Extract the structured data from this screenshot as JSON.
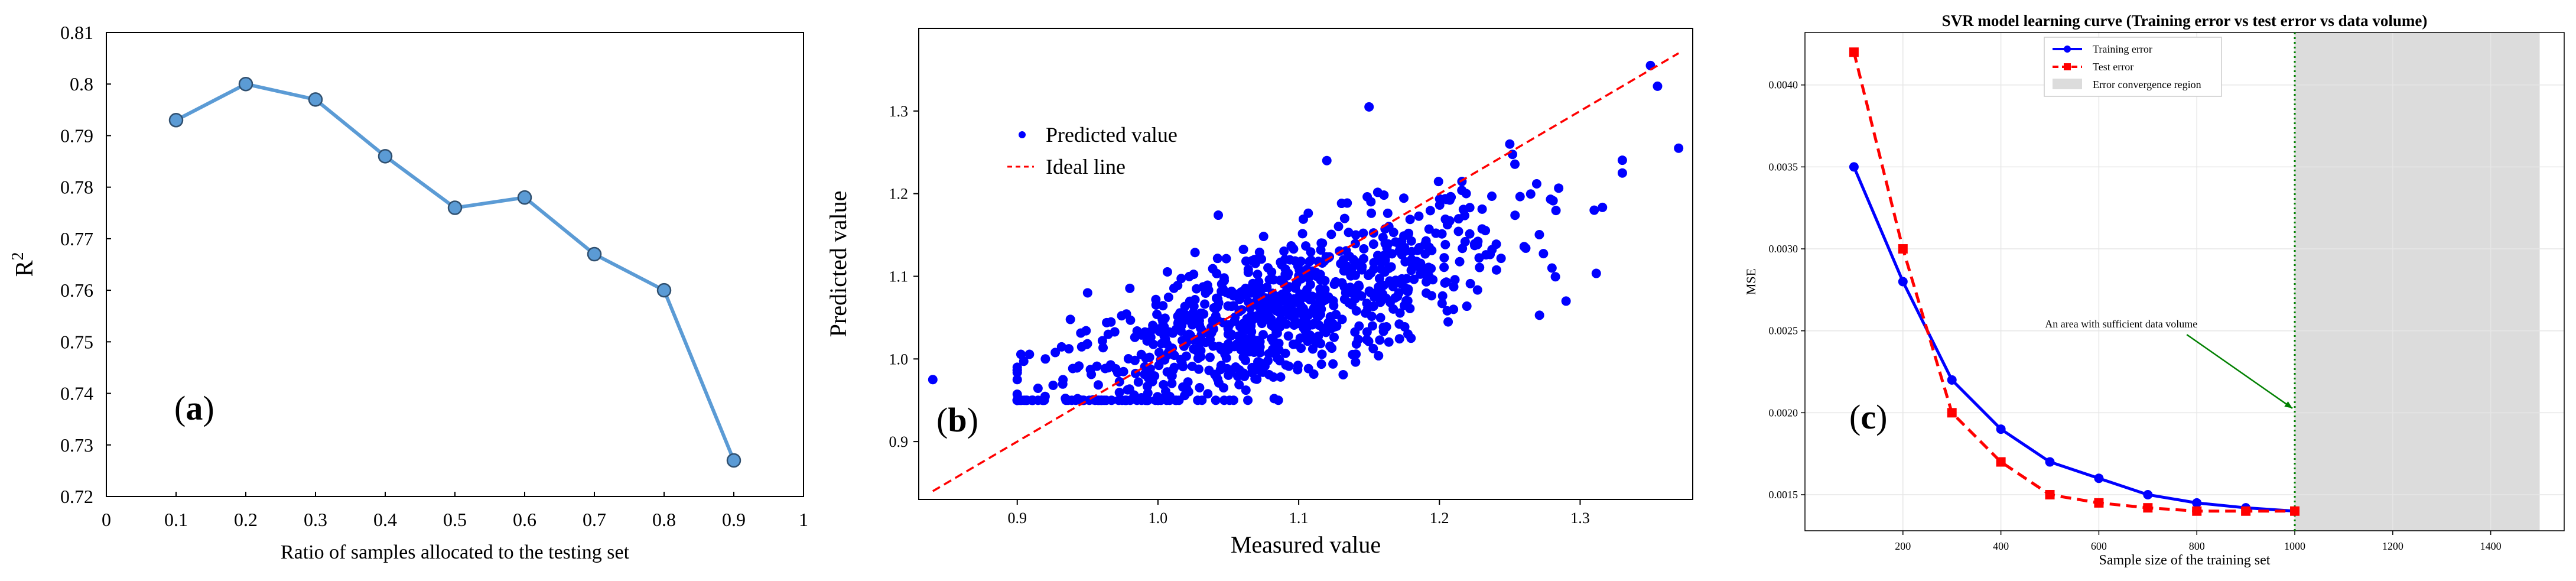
{
  "chart_data": [
    {
      "type": "line",
      "panel_label": "(a)",
      "panel_letter": "a",
      "xlabel": "Ratio of samples allocated to the testing set",
      "ylabel": "R",
      "ylabel_sup": "2",
      "xlim": [
        0,
        1
      ],
      "ylim": [
        0.72,
        0.81
      ],
      "xticks": [
        0,
        0.1,
        0.2,
        0.3,
        0.4,
        0.5,
        0.6,
        0.7,
        0.8,
        0.9,
        1
      ],
      "yticks": [
        0.72,
        0.73,
        0.74,
        0.75,
        0.76,
        0.77,
        0.78,
        0.79,
        0.8,
        0.81
      ],
      "xtick_labels": [
        "0",
        "0.1",
        "0.2",
        "0.3",
        "0.4",
        "0.5",
        "0.6",
        "0.7",
        "0.8",
        "0.9",
        "1"
      ],
      "ytick_labels": [
        "0.72",
        "0.73",
        "0.74",
        "0.75",
        "0.76",
        "0.77",
        "0.78",
        "0.79",
        "0.8",
        "0.81"
      ],
      "x": [
        0.1,
        0.2,
        0.3,
        0.4,
        0.5,
        0.6,
        0.7,
        0.8,
        0.9
      ],
      "y": [
        0.793,
        0.8,
        0.797,
        0.786,
        0.776,
        0.778,
        0.767,
        0.76,
        0.727
      ],
      "color": "#5b9bd5"
    },
    {
      "type": "scatter",
      "panel_label": "(b)",
      "panel_letter": "b",
      "xlabel": "Measured value",
      "ylabel": "Predicted value",
      "xlim": [
        0.83,
        1.38
      ],
      "ylim": [
        0.83,
        1.4
      ],
      "xticks": [
        0.9,
        1.0,
        1.1,
        1.2,
        1.3
      ],
      "yticks": [
        0.9,
        1.0,
        1.1,
        1.2,
        1.3
      ],
      "xtick_labels": [
        "0.9",
        "1.0",
        "1.1",
        "1.2",
        "1.3"
      ],
      "ytick_labels": [
        "0.9",
        "1.0",
        "1.1",
        "1.2",
        "1.3"
      ],
      "legend": [
        "Predicted value",
        "Ideal line"
      ],
      "ideal_line": {
        "x": [
          0.84,
          1.37
        ],
        "y": [
          0.84,
          1.37
        ]
      },
      "scatter_color": "#0000ff",
      "ideal_color": "#ff0000",
      "cloud": {
        "n": 900,
        "x_mean": 1.08,
        "x_sd": 0.085,
        "x_min": 0.9,
        "x_max": 1.33,
        "slope": 0.62,
        "anchor_x": 1.0,
        "anchor_y": 1.0,
        "noise_sd": 0.045,
        "y_min": 0.95,
        "y_max": 1.27
      },
      "outliers": [
        {
          "x": 0.84,
          "y": 0.975
        },
        {
          "x": 1.35,
          "y": 1.355
        },
        {
          "x": 1.355,
          "y": 1.33
        },
        {
          "x": 1.37,
          "y": 1.255
        },
        {
          "x": 1.33,
          "y": 1.225
        },
        {
          "x": 1.29,
          "y": 1.07
        },
        {
          "x": 1.15,
          "y": 1.305
        },
        {
          "x": 0.92,
          "y": 1.0
        },
        {
          "x": 0.9,
          "y": 0.975
        },
        {
          "x": 1.25,
          "y": 1.26
        },
        {
          "x": 1.28,
          "y": 1.11
        },
        {
          "x": 1.31,
          "y": 1.18
        },
        {
          "x": 1.21,
          "y": 1.06
        },
        {
          "x": 1.12,
          "y": 1.24
        },
        {
          "x": 0.95,
          "y": 1.08
        }
      ]
    },
    {
      "type": "line",
      "panel_label": "(c)",
      "panel_letter": "c",
      "title": "SVR model learning curve (Training error vs test error vs data volume)",
      "xlabel": "Sample size of the training set",
      "ylabel": "MSE",
      "xlim": [
        0,
        1550
      ],
      "ylim": [
        0.00128,
        0.00432
      ],
      "xticks": [
        200,
        400,
        600,
        800,
        1000,
        1200,
        1400
      ],
      "yticks": [
        0.0015,
        0.002,
        0.0025,
        0.003,
        0.0035,
        0.004
      ],
      "xtick_labels": [
        "200",
        "400",
        "600",
        "800",
        "1000",
        "1200",
        "1400"
      ],
      "ytick_labels": [
        "0.0015",
        "0.0020",
        "0.0025",
        "0.0030",
        "0.0035",
        "0.0040"
      ],
      "grid": true,
      "series": [
        {
          "name": "Training error",
          "x": [
            100,
            200,
            300,
            400,
            500,
            600,
            700,
            800,
            900,
            1000
          ],
          "y": [
            0.0035,
            0.0028,
            0.0022,
            0.0019,
            0.0017,
            0.0016,
            0.0015,
            0.00145,
            0.00142,
            0.0014
          ],
          "color": "#0000ff",
          "marker": "circle",
          "dash": "solid"
        },
        {
          "name": "Test error",
          "x": [
            100,
            200,
            300,
            400,
            500,
            600,
            700,
            800,
            900,
            1000
          ],
          "y": [
            0.0042,
            0.003,
            0.002,
            0.0017,
            0.0015,
            0.00145,
            0.00142,
            0.0014,
            0.0014,
            0.0014
          ],
          "color": "#ff0000",
          "marker": "square",
          "dash": "dashed"
        }
      ],
      "shaded_region": {
        "name": "Error convergence region",
        "x": [
          1000,
          1500
        ],
        "color": "#dcdcdc"
      },
      "vline": {
        "x": 1000,
        "color": "#008000"
      },
      "annotation": {
        "text": "An area with sufficient data volume",
        "text_x": 490,
        "text_y": 0.00252,
        "arrow_to_x": 1000,
        "arrow_to_y": 0.00202
      },
      "legend_entries": [
        "Training error",
        "Test error",
        "Error convergence region"
      ]
    }
  ]
}
